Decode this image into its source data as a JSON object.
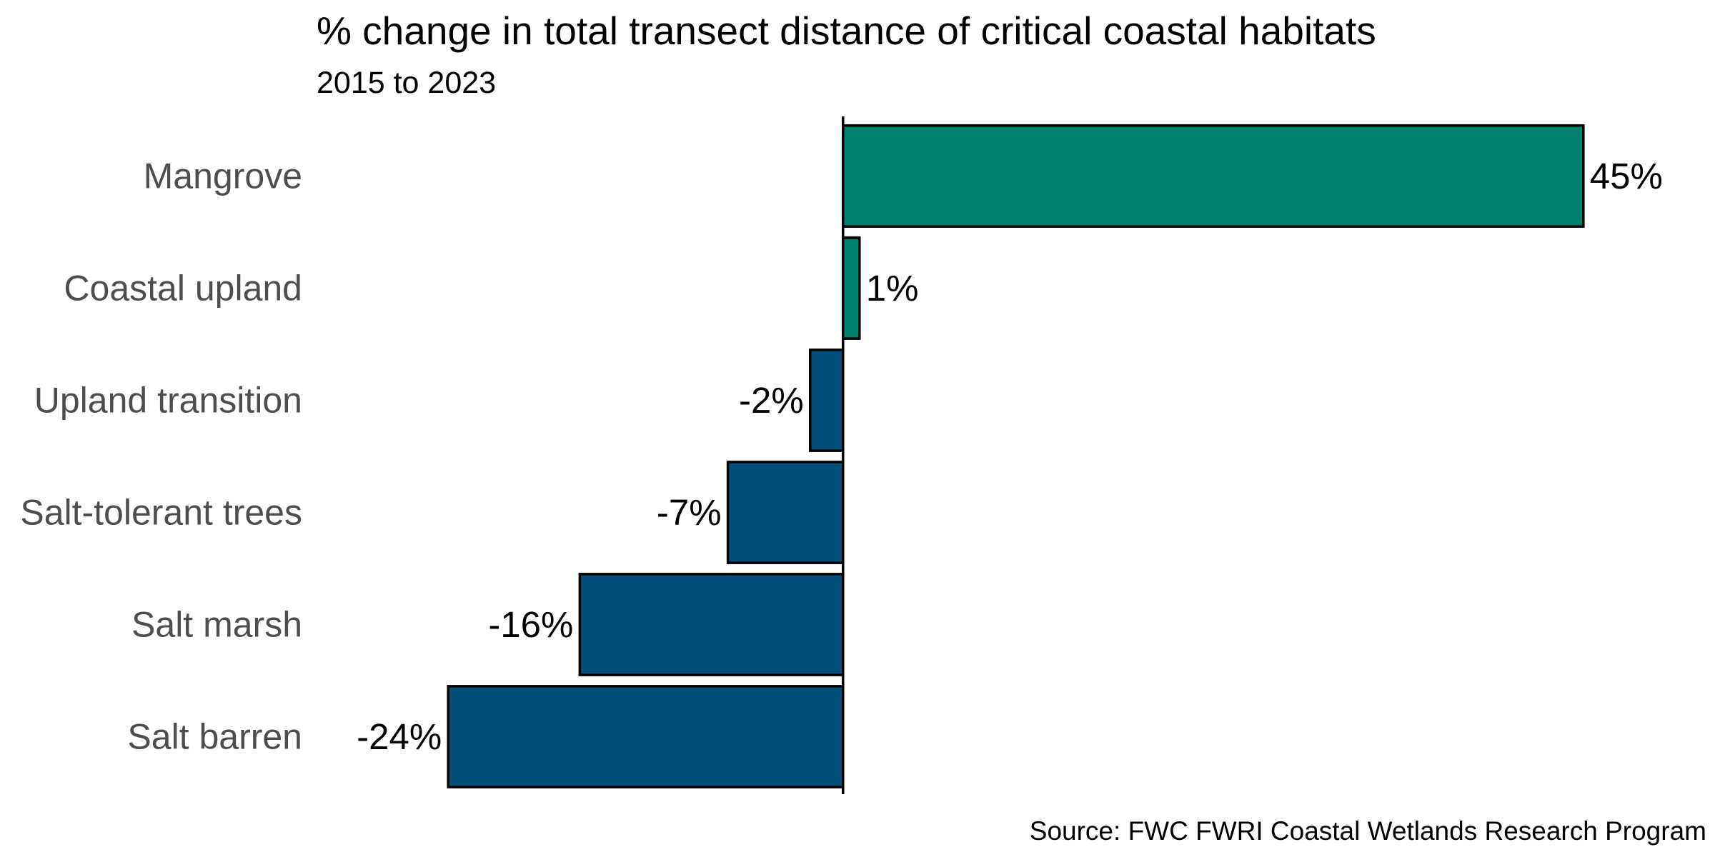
{
  "chart_data": {
    "type": "bar",
    "orientation": "horizontal",
    "title": "% change in total transect distance of critical coastal habitats",
    "subtitle": "2015 to 2023",
    "caption": "Source: FWC FWRI Coastal Wetlands Research Program",
    "xlabel": "",
    "ylabel": "",
    "grid": false,
    "legend": "none",
    "xlim": [
      -32,
      53
    ],
    "categories": [
      "Mangrove",
      "Coastal upland",
      "Upland transition",
      "Salt-tolerant trees",
      "Salt marsh",
      "Salt barren"
    ],
    "values": [
      45,
      1,
      -2,
      -7,
      -16,
      -24
    ],
    "value_labels": [
      "45%",
      "1%",
      "-2%",
      "-7%",
      "-16%",
      "-24%"
    ],
    "colors": {
      "positive": "#00806f",
      "negative": "#024f7c",
      "outline": "#000000"
    }
  }
}
